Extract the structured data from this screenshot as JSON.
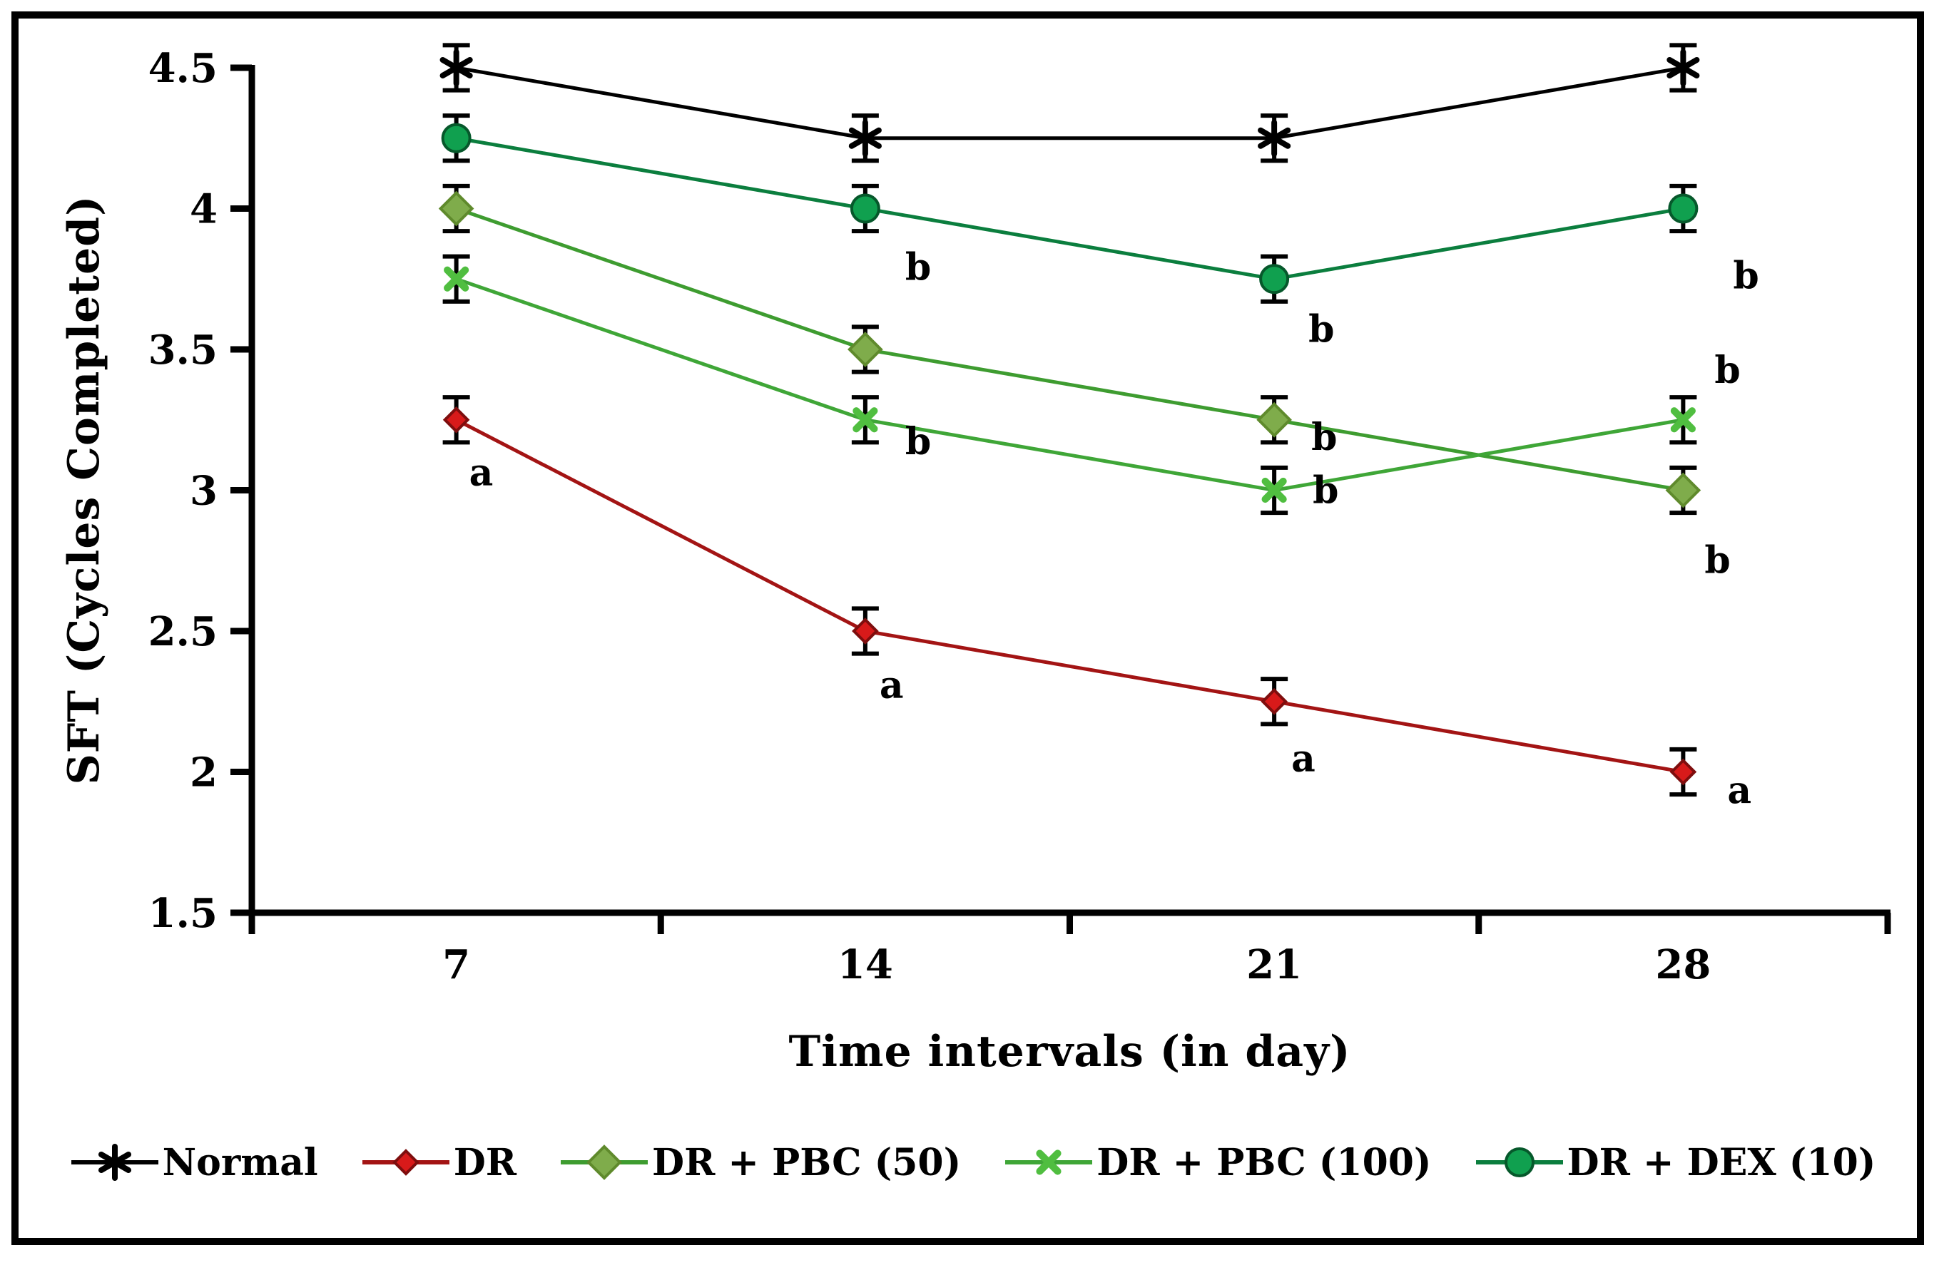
{
  "figure": {
    "background": "#ffffff",
    "border_color": "#000000",
    "error_bar_color": "#000000",
    "sig_label_color": "#000000"
  },
  "chart_data": {
    "type": "line",
    "title": "",
    "xlabel": "Time intervals (in day)",
    "ylabel": "SFT (Cycles Completed)",
    "categories": [
      "7",
      "14",
      "21",
      "28"
    ],
    "x_values": [
      7,
      14,
      21,
      28
    ],
    "ylim": [
      1.5,
      4.5
    ],
    "yticks": [
      1.5,
      2,
      2.5,
      3,
      3.5,
      4,
      4.5
    ],
    "ytick_labels": [
      "1.5",
      "2",
      "2.5",
      "3",
      "3.5",
      "4",
      "4.5"
    ],
    "grid": false,
    "legend_position": "bottom",
    "error_bar_halfheight": 0.08,
    "series": [
      {
        "name": "Normal",
        "marker": "asterisk",
        "marker_size": 22,
        "line_color": "#000000",
        "marker_color": "#000000",
        "marker_edge": "#000000",
        "values": [
          4.5,
          4.25,
          4.25,
          4.5
        ],
        "point_labels": [
          "",
          "",
          "",
          ""
        ],
        "label_offsets": [
          [
            0,
            0
          ],
          [
            0,
            0
          ],
          [
            0,
            0
          ],
          [
            0,
            0
          ]
        ]
      },
      {
        "name": "DR",
        "marker": "diamond",
        "marker_size": 16,
        "line_color": "#A31414",
        "marker_color": "#D81A1A",
        "marker_edge": "#7E0E0E",
        "values": [
          3.25,
          2.5,
          2.25,
          2.0
        ],
        "point_labels": [
          "a",
          "a",
          "a",
          "a"
        ],
        "label_offsets": [
          [
            18,
            92
          ],
          [
            20,
            94
          ],
          [
            24,
            98
          ],
          [
            62,
            44
          ]
        ]
      },
      {
        "name": "DR + PBC (50)",
        "marker": "diamond",
        "marker_size": 22,
        "line_color": "#3E9C30",
        "marker_color": "#7FAC4B",
        "marker_edge": "#5F8A2C",
        "values": [
          4.0,
          3.5,
          3.25,
          3.0
        ],
        "point_labels": [
          "",
          "",
          "b",
          "b"
        ],
        "label_offsets": [
          [
            0,
            0
          ],
          [
            0,
            0
          ],
          [
            52,
            42
          ],
          [
            30,
            116
          ]
        ]
      },
      {
        "name": "DR + PBC (100)",
        "marker": "x",
        "marker_size": 17,
        "line_color": "#3FA637",
        "marker_color": "#50BE40",
        "marker_edge": "#50BE40",
        "values": [
          3.75,
          3.25,
          3.0,
          3.25
        ],
        "point_labels": [
          "",
          "b",
          "b",
          "b"
        ],
        "label_offsets": [
          [
            0,
            0
          ],
          [
            56,
            48
          ],
          [
            54,
            18
          ],
          [
            44,
            -52
          ]
        ]
      },
      {
        "name": "DR + DEX (10)",
        "marker": "circle",
        "marker_size": 19,
        "line_color": "#0B7E3E",
        "marker_color": "#10A04F",
        "marker_edge": "#06582B",
        "values": [
          4.25,
          4.0,
          3.75,
          4.0
        ],
        "point_labels": [
          "",
          "b",
          "b",
          "b"
        ],
        "label_offsets": [
          [
            0,
            0
          ],
          [
            56,
            100
          ],
          [
            48,
            88
          ],
          [
            70,
            112
          ]
        ]
      }
    ]
  }
}
